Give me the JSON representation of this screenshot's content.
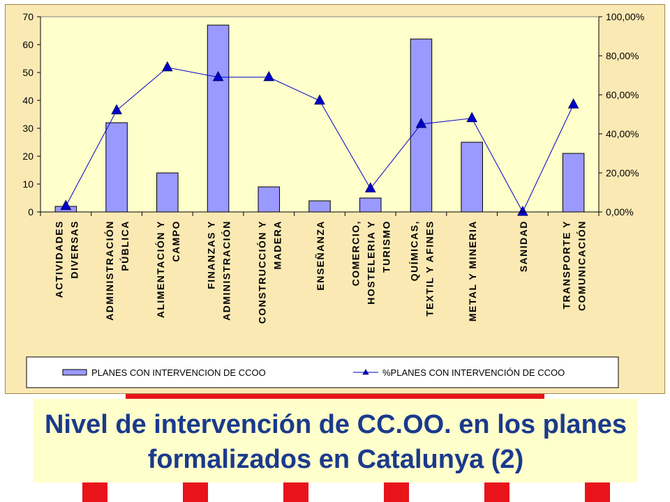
{
  "slide": {
    "title": "Nivel de intervención de CC.OO. en los planes formalizados en Catalunya (2)"
  },
  "chart_data": {
    "type": "bar",
    "categories": [
      [
        "ACTIVIDADES",
        "DIVERSAS"
      ],
      [
        "ADMINISTRACIÓN",
        "PÚBLICA"
      ],
      [
        "ALIMENTACIÓN Y",
        "CAMPO"
      ],
      [
        "FINANZAS Y",
        "ADMINISTRACIÓN"
      ],
      [
        "CONSTRUCCIÓN Y",
        "MADERA"
      ],
      [
        "ENSEÑANZA"
      ],
      [
        "COMERCIO,",
        "HOSTELERIA Y",
        "TURISMO"
      ],
      [
        "QUÍMICAS,",
        "TEXTIL Y AFINES"
      ],
      [
        "METAL Y MINERIA"
      ],
      [
        "SANIDAD"
      ],
      [
        "TRANSPORTE Y",
        "COMUNICACIÓN"
      ]
    ],
    "series": [
      {
        "name": "PLANES CON INTERVENCION DE CCOO",
        "type": "bar",
        "axis": "left",
        "color": "#9999ff",
        "values": [
          2,
          32,
          14,
          67,
          9,
          4,
          5,
          62,
          25,
          0,
          21
        ]
      },
      {
        "name": "%PLANES CON INTERVENCIÓN DE CCOO",
        "type": "line",
        "axis": "right",
        "color": "#0000cc",
        "values": [
          3,
          52,
          74,
          69,
          69,
          57,
          12,
          45,
          48,
          0,
          55
        ]
      }
    ],
    "left_axis": {
      "min": 0,
      "max": 70,
      "step": 10,
      "ticks": [
        "0",
        "10",
        "20",
        "30",
        "40",
        "50",
        "60",
        "70"
      ]
    },
    "right_axis": {
      "min": 0,
      "max": 100,
      "step": 20,
      "ticks": [
        "0,00%",
        "20,00%",
        "40,00%",
        "60,00%",
        "80,00%",
        "100,00%"
      ]
    },
    "title": "",
    "xlabel": "",
    "ylabel": "",
    "grid": false,
    "legend_position": "bottom"
  }
}
